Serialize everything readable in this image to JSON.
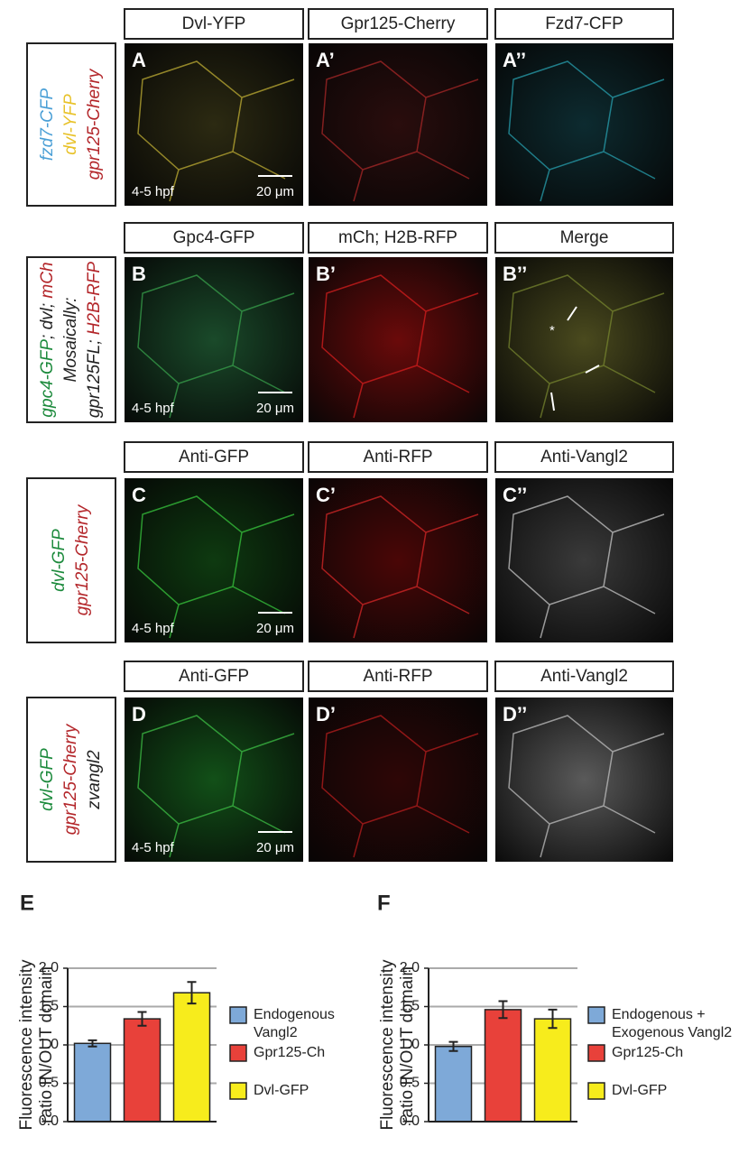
{
  "rows": [
    {
      "side_label": [
        [
          {
            "text": "fzd7-CFP",
            "color": "#4a9fd6"
          }
        ],
        [
          {
            "text": "dvl-YFP",
            "color": "#e8c22a"
          }
        ],
        [
          {
            "text": "gpr125-Cherry",
            "color": "#b3262a"
          }
        ]
      ],
      "panels": [
        {
          "header": "Dvl-YFP",
          "letter": "A",
          "stage": "4-5 hpf",
          "scale": "20 μm"
        },
        {
          "header": "Gpr125-Cherry",
          "letter": "A’"
        },
        {
          "header": "Fzd7-CFP",
          "letter": "A’’"
        }
      ]
    },
    {
      "side_label": [
        [
          {
            "text": "gpc4-GFP",
            "color": "#1c8a3c"
          },
          {
            "text": "; dvl; ",
            "color": "#222222"
          },
          {
            "text": "mCh",
            "color": "#b3262a"
          }
        ],
        [
          {
            "text": "Mosaically:",
            "color": "#222222"
          }
        ],
        [
          {
            "text": "gpr125FL",
            "color": "#222222"
          },
          {
            "text": "; ",
            "color": "#222222"
          },
          {
            "text": "H2B-RFP",
            "color": "#b3262a"
          }
        ]
      ],
      "panels": [
        {
          "header": "Gpc4-GFP",
          "letter": "B",
          "stage": "4-5 hpf",
          "scale": "20 μm"
        },
        {
          "header": "mCh; H2B-RFP",
          "letter": "B’"
        },
        {
          "header": "Merge",
          "letter": "B’’",
          "annotation": "*"
        }
      ]
    },
    {
      "side_label": [
        [
          {
            "text": "dvl-GFP",
            "color": "#1c8a3c"
          }
        ],
        [
          {
            "text": "gpr125-Cherry",
            "color": "#b3262a"
          }
        ]
      ],
      "panels": [
        {
          "header": "Anti-GFP",
          "letter": "C",
          "stage": "4-5 hpf",
          "scale": "20 μm"
        },
        {
          "header": "Anti-RFP",
          "letter": "C’"
        },
        {
          "header": "Anti-Vangl2",
          "letter": "C’’"
        }
      ]
    },
    {
      "side_label": [
        [
          {
            "text": "dvl-GFP",
            "color": "#1c8a3c"
          }
        ],
        [
          {
            "text": "gpr125-Cherry",
            "color": "#b3262a"
          }
        ],
        [
          {
            "text": "zvangl2",
            "color": "#222222"
          }
        ]
      ],
      "panels": [
        {
          "header": "Anti-GFP",
          "letter": "D",
          "stage": "4-5 hpf",
          "scale": "20 μm"
        },
        {
          "header": "Anti-RFP",
          "letter": "D’"
        },
        {
          "header": "Anti-Vangl2",
          "letter": "D’’"
        }
      ]
    }
  ],
  "chart_data": [
    {
      "type": "bar",
      "panel": "E",
      "ylabel": [
        "Fluorescence intensity",
        "ratio IN/OUT domain"
      ],
      "ylim": [
        0,
        2
      ],
      "yticks": [
        {
          "value": 0,
          "label": "0.0"
        },
        0.5,
        {
          "value": 1,
          "label": "1.0"
        },
        1.5,
        {
          "value": 2,
          "label": "2.0"
        }
      ],
      "grid": true,
      "series": [
        {
          "name": "Endogenous\nVangl2",
          "color": "#7ea9d8",
          "values": [
            1.02
          ],
          "errors": [
            0.04
          ]
        },
        {
          "name": "Gpr125-Ch",
          "color": "#e8413a",
          "values": [
            1.34
          ],
          "errors": [
            0.09
          ]
        },
        {
          "name": "Dvl-GFP",
          "color": "#f7ec1c",
          "values": [
            1.68
          ],
          "errors": [
            0.14
          ]
        }
      ]
    },
    {
      "type": "bar",
      "panel": "F",
      "ylabel": [
        "Fluorescence intensity",
        "ratio IN/OUT domain"
      ],
      "ylim": [
        0,
        2
      ],
      "yticks": [
        {
          "value": 0,
          "label": "0.0"
        },
        0.5,
        {
          "value": 1,
          "label": "1.0"
        },
        1.5,
        {
          "value": 2,
          "label": "2.0"
        }
      ],
      "grid": true,
      "series": [
        {
          "name": "Endogenous +\nExogenous Vangl2",
          "color": "#7ea9d8",
          "values": [
            0.98
          ],
          "errors": [
            0.06
          ]
        },
        {
          "name": "Gpr125-Ch",
          "color": "#e8413a",
          "values": [
            1.46
          ],
          "errors": [
            0.11
          ]
        },
        {
          "name": "Dvl-GFP",
          "color": "#f7ec1c",
          "values": [
            1.34
          ],
          "errors": [
            0.12
          ]
        }
      ]
    }
  ]
}
